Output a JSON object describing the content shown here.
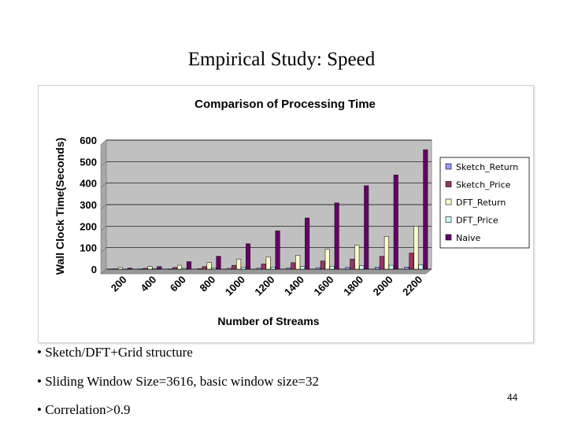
{
  "slide": {
    "title": "Empirical Study: Speed",
    "bullets": [
      "• Sketch/DFT+Grid structure",
      "• Sliding Window Size=3616, basic window size=32",
      "• Correlation>0.9"
    ],
    "page_number": "44"
  },
  "chart_data": {
    "type": "bar",
    "title": "Comparison of Processing Time",
    "xlabel": "Number of Streams",
    "ylabel": "Wall Clock Time(Seconds)",
    "ylim": [
      0,
      600
    ],
    "yticks": [
      "0",
      "100",
      "200",
      "300",
      "400",
      "500",
      "600"
    ],
    "categories": [
      "200",
      "400",
      "600",
      "800",
      "1000",
      "1200",
      "1400",
      "1600",
      "1800",
      "2000",
      "2200"
    ],
    "grid": true,
    "legend_position": "right",
    "plot_background": "#c0c0c0",
    "series": [
      {
        "name": "Sketch_Return",
        "color": "#9999ff",
        "values": [
          1,
          2,
          2,
          3,
          4,
          5,
          6,
          7,
          8,
          9,
          10
        ]
      },
      {
        "name": "Sketch_Price",
        "color": "#993366",
        "values": [
          2,
          4,
          8,
          12,
          18,
          24,
          30,
          38,
          47,
          60,
          75
        ]
      },
      {
        "name": "DFT_Return",
        "color": "#ffffcc",
        "values": [
          8,
          12,
          18,
          30,
          47,
          57,
          65,
          92,
          112,
          152,
          200
        ]
      },
      {
        "name": "DFT_Price",
        "color": "#ccffff",
        "values": [
          2,
          3,
          4,
          6,
          8,
          10,
          12,
          14,
          16,
          18,
          20
        ]
      },
      {
        "name": "Naive",
        "color": "#660066",
        "values": [
          5,
          12,
          35,
          60,
          118,
          178,
          238,
          308,
          388,
          438,
          555
        ]
      }
    ]
  }
}
